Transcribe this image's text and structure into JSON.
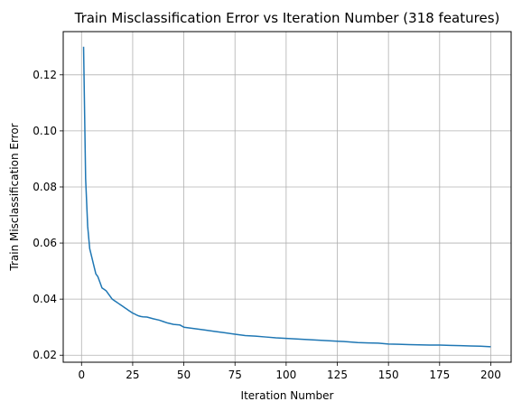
{
  "chart_data": {
    "type": "line",
    "title": "Train Misclassification Error vs Iteration Number (318 features)",
    "xlabel": "Iteration Number",
    "ylabel": "Train Misclassification Error",
    "xlim": [
      -8.95,
      209.95
    ],
    "ylim": [
      0.0175,
      0.1354
    ],
    "x_ticks": [
      0,
      25,
      50,
      75,
      100,
      125,
      150,
      175,
      200
    ],
    "x_tick_labels": [
      "0",
      "25",
      "50",
      "75",
      "100",
      "125",
      "150",
      "175",
      "200"
    ],
    "y_ticks": [
      0.02,
      0.04,
      0.06,
      0.08,
      0.1,
      0.12
    ],
    "y_tick_labels": [
      "0.02",
      "0.04",
      "0.06",
      "0.08",
      "0.10",
      "0.12"
    ],
    "grid": true,
    "series": [
      {
        "color": "#1f77b4",
        "x": [
          1,
          2,
          3,
          4,
          5,
          6,
          7,
          8,
          9,
          10,
          11,
          12,
          13,
          14,
          15,
          16,
          17,
          18,
          19,
          20,
          21,
          22,
          23,
          24,
          25,
          26,
          27,
          28,
          29,
          30,
          32,
          35,
          38,
          40,
          42,
          45,
          48,
          50,
          55,
          60,
          65,
          70,
          75,
          80,
          85,
          90,
          95,
          100,
          105,
          110,
          115,
          120,
          125,
          130,
          135,
          140,
          145,
          150,
          155,
          160,
          165,
          170,
          175,
          180,
          185,
          190,
          195,
          200
        ],
        "y": [
          0.13,
          0.083,
          0.066,
          0.058,
          0.055,
          0.052,
          0.049,
          0.048,
          0.046,
          0.044,
          0.0435,
          0.043,
          0.042,
          0.041,
          0.04,
          0.0395,
          0.039,
          0.0385,
          0.038,
          0.0375,
          0.037,
          0.0365,
          0.036,
          0.0355,
          0.035,
          0.0347,
          0.0343,
          0.034,
          0.0338,
          0.0337,
          0.0336,
          0.033,
          0.0325,
          0.032,
          0.0315,
          0.031,
          0.0308,
          0.03,
          0.0295,
          0.029,
          0.0285,
          0.028,
          0.0275,
          0.027,
          0.0268,
          0.0265,
          0.0262,
          0.026,
          0.0258,
          0.0256,
          0.0254,
          0.0252,
          0.025,
          0.0248,
          0.0245,
          0.0244,
          0.0243,
          0.024,
          0.0239,
          0.0238,
          0.0237,
          0.0236,
          0.0236,
          0.0235,
          0.0234,
          0.0233,
          0.0232,
          0.023
        ]
      }
    ]
  }
}
